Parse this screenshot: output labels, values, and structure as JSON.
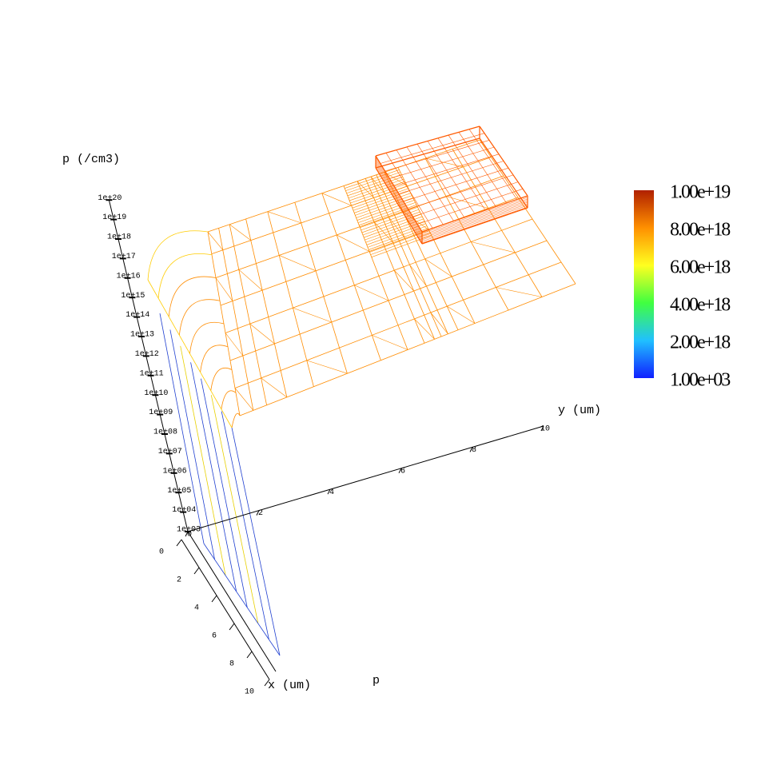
{
  "chart_data": {
    "type": "surface3d",
    "zlabel": "p (/cm3)",
    "xlabel": "x (um)",
    "ylabel": "y (um)",
    "quantity": "p",
    "xlim": [
      0,
      10
    ],
    "xticks": [
      0,
      2,
      4,
      6,
      8,
      10
    ],
    "ylim": [
      0,
      10
    ],
    "yticks": [
      0,
      2,
      4,
      6,
      8,
      10
    ],
    "zlim": [
      1000,
      1e+20
    ],
    "zscale": "log",
    "zticks": [
      {
        "value": 1000,
        "label": "1e+03"
      },
      {
        "value": 10000,
        "label": "1e+04"
      },
      {
        "value": 100000,
        "label": "1e+05"
      },
      {
        "value": 1000000,
        "label": "1e+06"
      },
      {
        "value": 10000000,
        "label": "1e+07"
      },
      {
        "value": 100000000,
        "label": "1e+08"
      },
      {
        "value": 1000000000,
        "label": "1e+09"
      },
      {
        "value": 10000000000,
        "label": "1e+10"
      },
      {
        "value": 100000000000,
        "label": "1e+11"
      },
      {
        "value": 1000000000000,
        "label": "1e+12"
      },
      {
        "value": 10000000000000,
        "label": "1e+13"
      },
      {
        "value": 100000000000000,
        "label": "1e+14"
      },
      {
        "value": 1000000000000000.0,
        "label": "1e+15"
      },
      {
        "value": 1e+16,
        "label": "1e+16"
      },
      {
        "value": 1e+17,
        "label": "1e+17"
      },
      {
        "value": 1e+18,
        "label": "1e+18"
      },
      {
        "value": 1e+19,
        "label": "1e+19"
      },
      {
        "value": 1e+20,
        "label": "1e+20"
      }
    ],
    "mesh_color": "#ff8c00",
    "colorbar": {
      "clim": [
        1000,
        1e+19
      ],
      "colors": [
        "#1020ff",
        "#20c0ff",
        "#40ff40",
        "#ffff20",
        "#ff9000",
        "#b02000"
      ],
      "ticks": [
        {
          "value": 1e+19,
          "label": "1.00e+19"
        },
        {
          "value": 8e+18,
          "label": "8.00e+18"
        },
        {
          "value": 6e+18,
          "label": "6.00e+18"
        },
        {
          "value": 4e+18,
          "label": "4.00e+18"
        },
        {
          "value": 2e+18,
          "label": "2.00e+18"
        },
        {
          "value": 1000,
          "label": "1.00e+03"
        }
      ]
    }
  }
}
